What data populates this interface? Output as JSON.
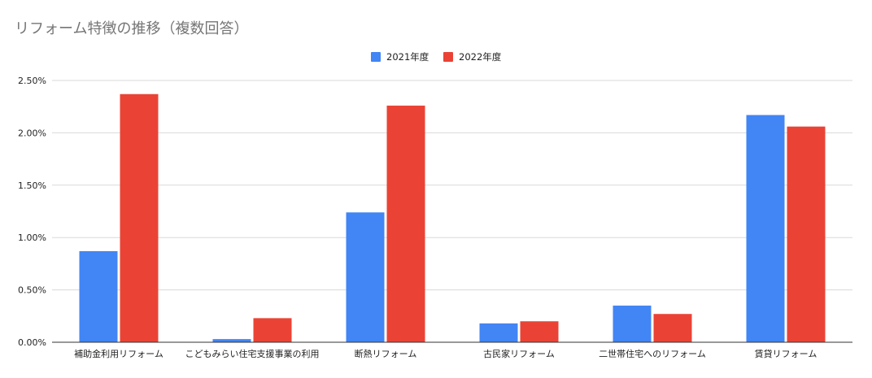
{
  "chart_data": {
    "type": "bar",
    "title": "リフォーム特徴の推移（複数回答）",
    "categories": [
      "補助金利用リフォーム",
      "こどもみらい住宅支援事業の利用",
      "断熱リフォーム",
      "古民家リフォーム",
      "二世帯住宅へのリフォーム",
      "賃貸リフォーム"
    ],
    "series": [
      {
        "name": "2021年度",
        "color": "#4285f4",
        "values": [
          0.87,
          0.03,
          1.24,
          0.18,
          0.35,
          2.17
        ]
      },
      {
        "name": "2022年度",
        "color": "#ea4335",
        "values": [
          2.37,
          0.23,
          2.26,
          0.2,
          0.27,
          2.06
        ]
      }
    ],
    "ylim": [
      0,
      2.5
    ],
    "yticks": [
      "0.00%",
      "0.50%",
      "1.00%",
      "1.50%",
      "2.00%",
      "2.50%"
    ],
    "ytick_values": [
      0,
      0.5,
      1.0,
      1.5,
      2.0,
      2.5
    ],
    "grid": true,
    "legend_position": "top-center"
  }
}
